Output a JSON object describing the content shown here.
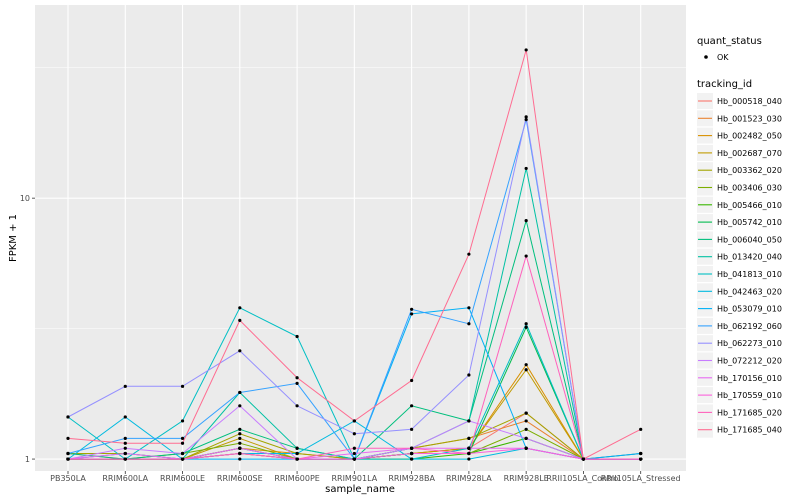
{
  "chart_data": {
    "type": "line",
    "title": "",
    "xlabel": "sample_name",
    "ylabel": "FPKM + 1",
    "y_scale": "log10",
    "ylim": [
      0.9,
      55
    ],
    "y_ticks": [
      1,
      10
    ],
    "y_tick_labels": [
      "1",
      "10"
    ],
    "grid": true,
    "legend_position": "right",
    "background": "#ebebeb",
    "categories": [
      "PB350LA",
      "RRIM600LA",
      "RRIM600LE",
      "RRIM600SE",
      "RRIM600PE",
      "RRIM901LA",
      "RRIM928BA",
      "RRIM928LA",
      "RRIM928LE",
      "RRII105LA_Control",
      "RRII105LA_Stressed"
    ],
    "legend_quant": {
      "title": "quant_status",
      "items": [
        "OK"
      ]
    },
    "legend_series_title": "tracking_id",
    "series": [
      {
        "name": "Hb_000518_040",
        "color": "#F8766D",
        "values": [
          1.05,
          1.0,
          1.0,
          1.1,
          1.0,
          1.0,
          1.05,
          1.1,
          1.5,
          1.0,
          1.05
        ]
      },
      {
        "name": "Hb_001523_030",
        "color": "#EA8331",
        "values": [
          1.0,
          1.0,
          1.0,
          1.05,
          1.0,
          1.0,
          1.1,
          1.2,
          1.4,
          1.0,
          1.0
        ]
      },
      {
        "name": "Hb_002482_050",
        "color": "#D89000",
        "values": [
          1.0,
          1.0,
          1.0,
          1.1,
          1.05,
          1.0,
          1.05,
          1.1,
          2.3,
          1.0,
          1.0
        ]
      },
      {
        "name": "Hb_002687_070",
        "color": "#C09B00",
        "values": [
          1.0,
          1.0,
          1.0,
          1.2,
          1.0,
          1.0,
          1.05,
          1.1,
          2.2,
          1.0,
          1.0
        ]
      },
      {
        "name": "Hb_003362_020",
        "color": "#A3A500",
        "values": [
          1.05,
          1.05,
          1.0,
          1.25,
          1.05,
          1.0,
          1.1,
          1.2,
          1.5,
          1.0,
          1.0
        ]
      },
      {
        "name": "Hb_003406_030",
        "color": "#7CAE00",
        "values": [
          1.0,
          1.0,
          1.05,
          1.15,
          1.0,
          1.0,
          1.05,
          1.05,
          1.3,
          1.0,
          1.0
        ]
      },
      {
        "name": "Hb_005466_010",
        "color": "#39B600",
        "values": [
          1.0,
          1.0,
          1.0,
          1.05,
          1.0,
          1.0,
          1.0,
          1.05,
          1.2,
          1.0,
          1.0
        ]
      },
      {
        "name": "Hb_005742_010",
        "color": "#00BB4E",
        "values": [
          1.0,
          1.0,
          1.0,
          1.1,
          1.0,
          1.0,
          1.05,
          1.05,
          3.2,
          1.0,
          1.0
        ]
      },
      {
        "name": "Hb_006040_050",
        "color": "#00BF7D",
        "values": [
          1.05,
          1.0,
          1.05,
          1.3,
          1.1,
          1.0,
          1.6,
          1.4,
          8.2,
          1.0,
          1.0
        ]
      },
      {
        "name": "Hb_013420_040",
        "color": "#00C1A3",
        "values": [
          1.0,
          1.05,
          1.0,
          1.8,
          1.1,
          1.0,
          1.1,
          1.4,
          13.0,
          1.0,
          1.0
        ]
      },
      {
        "name": "Hb_041813_010",
        "color": "#00BFC4",
        "values": [
          1.45,
          1.0,
          1.4,
          3.8,
          2.95,
          1.0,
          1.0,
          1.1,
          3.3,
          1.0,
          1.05
        ]
      },
      {
        "name": "Hb_042463_020",
        "color": "#00BAE0",
        "values": [
          1.0,
          1.45,
          1.0,
          1.05,
          1.05,
          1.4,
          1.0,
          1.0,
          1.1,
          1.0,
          1.0
        ]
      },
      {
        "name": "Hb_053079_010",
        "color": "#00B0F6",
        "values": [
          1.0,
          1.0,
          1.0,
          1.0,
          1.0,
          1.0,
          3.6,
          3.8,
          1.1,
          1.0,
          1.05
        ]
      },
      {
        "name": "Hb_062192_060",
        "color": "#35A2FF",
        "values": [
          1.05,
          1.2,
          1.2,
          1.8,
          1.95,
          1.0,
          3.75,
          3.3,
          20.0,
          1.0,
          1.0
        ]
      },
      {
        "name": "Hb_062273_010",
        "color": "#9590FF",
        "values": [
          1.45,
          1.9,
          1.9,
          2.6,
          1.6,
          1.25,
          1.3,
          2.1,
          20.5,
          1.0,
          1.0
        ]
      },
      {
        "name": "Hb_072212_020",
        "color": "#C77CFF",
        "values": [
          1.0,
          1.1,
          1.05,
          1.6,
          1.0,
          1.0,
          1.1,
          1.4,
          1.2,
          1.0,
          1.0
        ]
      },
      {
        "name": "Hb_170156_010",
        "color": "#E76BF3",
        "values": [
          1.0,
          1.05,
          1.0,
          1.1,
          1.0,
          1.05,
          1.1,
          1.1,
          1.1,
          1.0,
          1.0
        ]
      },
      {
        "name": "Hb_170559_010",
        "color": "#FA62DB",
        "values": [
          1.0,
          1.0,
          1.0,
          1.05,
          1.0,
          1.0,
          1.05,
          1.05,
          1.1,
          1.0,
          1.0
        ]
      },
      {
        "name": "Hb_171685_020",
        "color": "#FF62BC",
        "values": [
          1.0,
          1.0,
          1.0,
          1.05,
          1.0,
          1.1,
          1.1,
          1.05,
          6.0,
          1.0,
          1.0
        ]
      },
      {
        "name": "Hb_171685_040",
        "color": "#FF6C91",
        "values": [
          1.2,
          1.15,
          1.15,
          3.4,
          2.05,
          1.4,
          2.0,
          6.1,
          37.0,
          1.0,
          1.3
        ]
      }
    ]
  }
}
